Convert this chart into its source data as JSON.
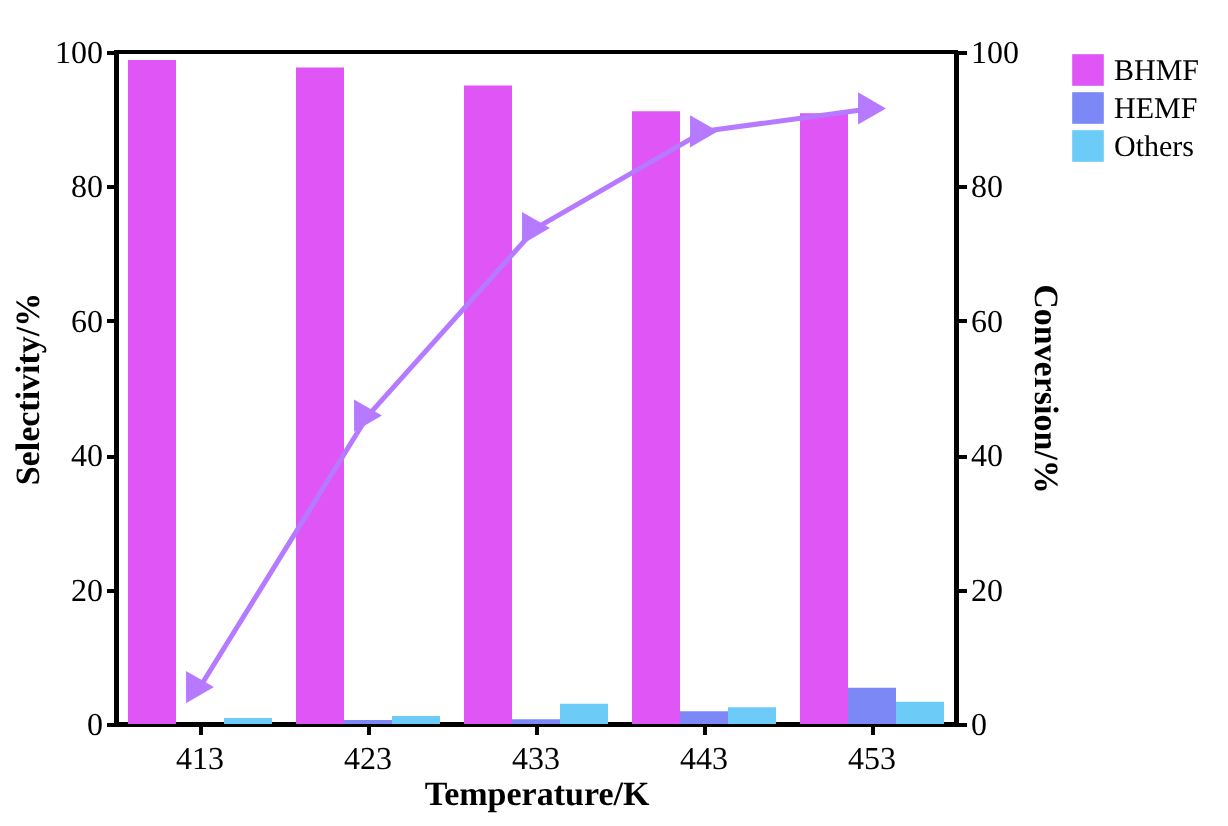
{
  "chart_data": {
    "type": "bar",
    "xlabel": "Temperature/K",
    "ylabel": "Selectivity/%",
    "y2label": "Conversion/%",
    "categories": [
      "413",
      "423",
      "433",
      "443",
      "453"
    ],
    "series": [
      {
        "name": "BHMF",
        "color": "#e055f5",
        "values": [
          98.8,
          97.7,
          95.0,
          91.2,
          90.9
        ]
      },
      {
        "name": "HEMF",
        "color": "#7b88f5",
        "values": [
          0,
          0.6,
          0.7,
          1.9,
          5.4
        ]
      },
      {
        "name": "Others",
        "color": "#6dcbf7",
        "values": [
          0.9,
          1.2,
          3.0,
          2.5,
          3.3
        ]
      },
      {
        "type": "line",
        "axis": "y2",
        "color": "#b57aff",
        "marker": "triangle",
        "values": [
          5.5,
          45.9,
          73.8,
          88.2,
          91.6
        ]
      }
    ],
    "ylim": [
      0,
      100
    ],
    "yticks": [
      0,
      20,
      40,
      60,
      80,
      100
    ],
    "y2lim": [
      0,
      100
    ],
    "y2ticks": [
      0,
      20,
      40,
      60,
      80,
      100
    ],
    "grid": false,
    "legend": "top right"
  }
}
